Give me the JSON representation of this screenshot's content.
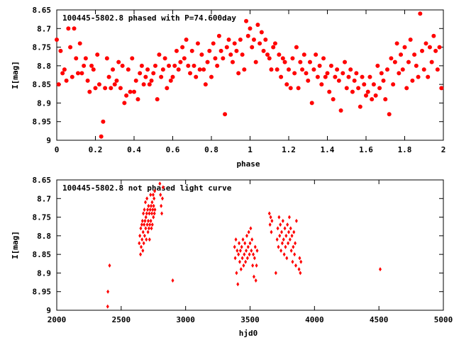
{
  "chart_data": [
    {
      "type": "scatter",
      "title": "100445-5802.8 phased with P=74.600day",
      "xlabel": "phase",
      "ylabel": "I[mag]",
      "xlim": [
        0,
        2
      ],
      "ylim": [
        8.65,
        9
      ],
      "y_inverted": true,
      "x_ticks": [
        "0",
        "0.2",
        "0.4",
        "0.6",
        "0.8",
        "1",
        "1.2",
        "1.4",
        "1.6",
        "1.8",
        "2"
      ],
      "y_ticks": [
        "8.65",
        "8.7",
        "8.75",
        "8.8",
        "8.85",
        "8.9",
        "8.95",
        "9"
      ],
      "marker_color": "#ff0000",
      "marker": "filled-circle",
      "points": [
        [
          0.0,
          8.73
        ],
        [
          0.01,
          8.85
        ],
        [
          0.02,
          8.76
        ],
        [
          0.03,
          8.82
        ],
        [
          0.04,
          8.81
        ],
        [
          0.05,
          8.84
        ],
        [
          0.06,
          8.7
        ],
        [
          0.07,
          8.75
        ],
        [
          0.08,
          8.83
        ],
        [
          0.09,
          8.7
        ],
        [
          0.1,
          8.78
        ],
        [
          0.11,
          8.82
        ],
        [
          0.12,
          8.74
        ],
        [
          0.13,
          8.82
        ],
        [
          0.14,
          8.8
        ],
        [
          0.15,
          8.78
        ],
        [
          0.16,
          8.84
        ],
        [
          0.17,
          8.87
        ],
        [
          0.18,
          8.8
        ],
        [
          0.19,
          8.81
        ],
        [
          0.2,
          8.86
        ],
        [
          0.21,
          8.77
        ],
        [
          0.22,
          8.85
        ],
        [
          0.23,
          8.99
        ],
        [
          0.24,
          8.95
        ],
        [
          0.25,
          8.86
        ],
        [
          0.26,
          8.78
        ],
        [
          0.27,
          8.83
        ],
        [
          0.28,
          8.86
        ],
        [
          0.29,
          8.81
        ],
        [
          0.3,
          8.85
        ],
        [
          0.31,
          8.84
        ],
        [
          0.32,
          8.79
        ],
        [
          0.33,
          8.86
        ],
        [
          0.34,
          8.8
        ],
        [
          0.35,
          8.9
        ],
        [
          0.36,
          8.88
        ],
        [
          0.37,
          8.81
        ],
        [
          0.38,
          8.87
        ],
        [
          0.39,
          8.78
        ],
        [
          0.4,
          8.87
        ],
        [
          0.41,
          8.84
        ],
        [
          0.42,
          8.89
        ],
        [
          0.43,
          8.82
        ],
        [
          0.44,
          8.8
        ],
        [
          0.45,
          8.85
        ],
        [
          0.46,
          8.83
        ],
        [
          0.47,
          8.81
        ],
        [
          0.48,
          8.85
        ],
        [
          0.49,
          8.84
        ],
        [
          0.5,
          8.82
        ],
        [
          0.51,
          8.8
        ],
        [
          0.52,
          8.89
        ],
        [
          0.53,
          8.77
        ],
        [
          0.54,
          8.83
        ],
        [
          0.55,
          8.81
        ],
        [
          0.56,
          8.78
        ],
        [
          0.57,
          8.86
        ],
        [
          0.58,
          8.8
        ],
        [
          0.59,
          8.84
        ],
        [
          0.6,
          8.83
        ],
        [
          0.61,
          8.8
        ],
        [
          0.62,
          8.76
        ],
        [
          0.63,
          8.81
        ],
        [
          0.64,
          8.79
        ],
        [
          0.65,
          8.75
        ],
        [
          0.66,
          8.78
        ],
        [
          0.67,
          8.73
        ],
        [
          0.68,
          8.8
        ],
        [
          0.69,
          8.82
        ],
        [
          0.7,
          8.76
        ],
        [
          0.71,
          8.8
        ],
        [
          0.72,
          8.83
        ],
        [
          0.73,
          8.74
        ],
        [
          0.74,
          8.81
        ],
        [
          0.75,
          8.77
        ],
        [
          0.76,
          8.81
        ],
        [
          0.77,
          8.85
        ],
        [
          0.78,
          8.79
        ],
        [
          0.79,
          8.76
        ],
        [
          0.8,
          8.83
        ],
        [
          0.81,
          8.74
        ],
        [
          0.82,
          8.78
        ],
        [
          0.83,
          8.8
        ],
        [
          0.84,
          8.72
        ],
        [
          0.85,
          8.76
        ],
        [
          0.86,
          8.78
        ],
        [
          0.87,
          8.93
        ],
        [
          0.88,
          8.75
        ],
        [
          0.89,
          8.73
        ],
        [
          0.9,
          8.77
        ],
        [
          0.91,
          8.79
        ],
        [
          0.92,
          8.74
        ],
        [
          0.93,
          8.76
        ],
        [
          0.94,
          8.82
        ],
        [
          0.95,
          8.73
        ],
        [
          0.96,
          8.77
        ],
        [
          0.97,
          8.81
        ],
        [
          0.98,
          8.68
        ],
        [
          0.99,
          8.72
        ],
        [
          1.0,
          8.7
        ],
        [
          1.01,
          8.75
        ],
        [
          1.02,
          8.73
        ],
        [
          1.03,
          8.79
        ],
        [
          1.04,
          8.69
        ],
        [
          1.05,
          8.74
        ],
        [
          1.06,
          8.71
        ],
        [
          1.07,
          8.76
        ],
        [
          1.08,
          8.73
        ],
        [
          1.09,
          8.77
        ],
        [
          1.1,
          8.78
        ],
        [
          1.11,
          8.81
        ],
        [
          1.12,
          8.75
        ],
        [
          1.13,
          8.74
        ],
        [
          1.14,
          8.81
        ],
        [
          1.15,
          8.77
        ],
        [
          1.16,
          8.83
        ],
        [
          1.17,
          8.78
        ],
        [
          1.18,
          8.79
        ],
        [
          1.19,
          8.85
        ],
        [
          1.2,
          8.81
        ],
        [
          1.21,
          8.86
        ],
        [
          1.22,
          8.78
        ],
        [
          1.23,
          8.82
        ],
        [
          1.24,
          8.75
        ],
        [
          1.25,
          8.86
        ],
        [
          1.26,
          8.79
        ],
        [
          1.27,
          8.81
        ],
        [
          1.28,
          8.77
        ],
        [
          1.29,
          8.82
        ],
        [
          1.3,
          8.84
        ],
        [
          1.31,
          8.79
        ],
        [
          1.32,
          8.9
        ],
        [
          1.33,
          8.81
        ],
        [
          1.34,
          8.77
        ],
        [
          1.35,
          8.83
        ],
        [
          1.36,
          8.8
        ],
        [
          1.37,
          8.85
        ],
        [
          1.38,
          8.78
        ],
        [
          1.39,
          8.83
        ],
        [
          1.4,
          8.82
        ],
        [
          1.41,
          8.87
        ],
        [
          1.42,
          8.8
        ],
        [
          1.43,
          8.89
        ],
        [
          1.44,
          8.83
        ],
        [
          1.45,
          8.81
        ],
        [
          1.46,
          8.84
        ],
        [
          1.47,
          8.92
        ],
        [
          1.48,
          8.82
        ],
        [
          1.49,
          8.79
        ],
        [
          1.5,
          8.86
        ],
        [
          1.51,
          8.83
        ],
        [
          1.52,
          8.81
        ],
        [
          1.53,
          8.87
        ],
        [
          1.54,
          8.84
        ],
        [
          1.55,
          8.82
        ],
        [
          1.56,
          8.86
        ],
        [
          1.57,
          8.91
        ],
        [
          1.58,
          8.83
        ],
        [
          1.59,
          8.85
        ],
        [
          1.6,
          8.88
        ],
        [
          1.61,
          8.87
        ],
        [
          1.62,
          8.83
        ],
        [
          1.63,
          8.89
        ],
        [
          1.64,
          8.85
        ],
        [
          1.65,
          8.88
        ],
        [
          1.66,
          8.8
        ],
        [
          1.67,
          8.86
        ],
        [
          1.68,
          8.82
        ],
        [
          1.69,
          8.84
        ],
        [
          1.7,
          8.89
        ],
        [
          1.71,
          8.81
        ],
        [
          1.72,
          8.93
        ],
        [
          1.73,
          8.78
        ],
        [
          1.74,
          8.85
        ],
        [
          1.75,
          8.79
        ],
        [
          1.76,
          8.74
        ],
        [
          1.77,
          8.82
        ],
        [
          1.78,
          8.77
        ],
        [
          1.79,
          8.81
        ],
        [
          1.8,
          8.75
        ],
        [
          1.81,
          8.86
        ],
        [
          1.82,
          8.79
        ],
        [
          1.83,
          8.73
        ],
        [
          1.84,
          8.84
        ],
        [
          1.85,
          8.77
        ],
        [
          1.86,
          8.8
        ],
        [
          1.87,
          8.83
        ],
        [
          1.88,
          8.66
        ],
        [
          1.89,
          8.76
        ],
        [
          1.9,
          8.81
        ],
        [
          1.91,
          8.74
        ],
        [
          1.92,
          8.83
        ],
        [
          1.93,
          8.75
        ],
        [
          1.94,
          8.79
        ],
        [
          1.95,
          8.72
        ],
        [
          1.96,
          8.76
        ],
        [
          1.97,
          8.81
        ],
        [
          1.98,
          8.75
        ],
        [
          1.99,
          8.86
        ]
      ]
    },
    {
      "type": "scatter",
      "title": "100445-5802.8 not phased light curve",
      "xlabel": "hjd0",
      "ylabel": "I[mag]",
      "xlim": [
        2000,
        5000
      ],
      "ylim": [
        8.65,
        9
      ],
      "y_inverted": true,
      "x_ticks": [
        "2000",
        "2500",
        "3000",
        "3500",
        "4000",
        "4500",
        "5000"
      ],
      "y_ticks": [
        "8.65",
        "8.7",
        "8.75",
        "8.8",
        "8.85",
        "8.9",
        "8.95",
        "9"
      ],
      "marker_color": "#ff0000",
      "marker": "diamond",
      "points": [
        [
          2395,
          8.99
        ],
        [
          2397,
          8.95
        ],
        [
          2410,
          8.88
        ],
        [
          2640,
          8.82
        ],
        [
          2645,
          8.8
        ],
        [
          2650,
          8.85
        ],
        [
          2652,
          8.78
        ],
        [
          2655,
          8.83
        ],
        [
          2660,
          8.77
        ],
        [
          2662,
          8.81
        ],
        [
          2665,
          8.76
        ],
        [
          2668,
          8.84
        ],
        [
          2670,
          8.79
        ],
        [
          2672,
          8.74
        ],
        [
          2675,
          8.82
        ],
        [
          2678,
          8.77
        ],
        [
          2680,
          8.73
        ],
        [
          2682,
          8.8
        ],
        [
          2685,
          8.76
        ],
        [
          2688,
          8.71
        ],
        [
          2690,
          8.78
        ],
        [
          2692,
          8.75
        ],
        [
          2695,
          8.81
        ],
        [
          2698,
          8.74
        ],
        [
          2700,
          8.7
        ],
        [
          2702,
          8.77
        ],
        [
          2705,
          8.73
        ],
        [
          2708,
          8.79
        ],
        [
          2710,
          8.76
        ],
        [
          2712,
          8.72
        ],
        [
          2715,
          8.78
        ],
        [
          2718,
          8.74
        ],
        [
          2720,
          8.81
        ],
        [
          2722,
          8.77
        ],
        [
          2725,
          8.73
        ],
        [
          2728,
          8.69
        ],
        [
          2730,
          8.76
        ],
        [
          2732,
          8.72
        ],
        [
          2735,
          8.78
        ],
        [
          2738,
          8.74
        ],
        [
          2740,
          8.71
        ],
        [
          2742,
          8.77
        ],
        [
          2745,
          8.73
        ],
        [
          2748,
          8.69
        ],
        [
          2750,
          8.75
        ],
        [
          2752,
          8.72
        ],
        [
          2755,
          8.7
        ],
        [
          2758,
          8.74
        ],
        [
          2760,
          8.68
        ],
        [
          2762,
          8.73
        ],
        [
          2800,
          8.66
        ],
        [
          2805,
          8.69
        ],
        [
          2810,
          8.72
        ],
        [
          2815,
          8.74
        ],
        [
          2820,
          8.7
        ],
        [
          2825,
          8.67
        ],
        [
          2900,
          8.92
        ],
        [
          3380,
          8.83
        ],
        [
          3385,
          8.86
        ],
        [
          3390,
          8.81
        ],
        [
          3395,
          8.9
        ],
        [
          3400,
          8.84
        ],
        [
          3405,
          8.93
        ],
        [
          3410,
          8.85
        ],
        [
          3415,
          8.82
        ],
        [
          3420,
          8.87
        ],
        [
          3425,
          8.84
        ],
        [
          3430,
          8.89
        ],
        [
          3435,
          8.83
        ],
        [
          3440,
          8.86
        ],
        [
          3445,
          8.81
        ],
        [
          3450,
          8.88
        ],
        [
          3455,
          8.85
        ],
        [
          3460,
          8.82
        ],
        [
          3465,
          8.87
        ],
        [
          3470,
          8.84
        ],
        [
          3475,
          8.8
        ],
        [
          3480,
          8.86
        ],
        [
          3485,
          8.83
        ],
        [
          3490,
          8.79
        ],
        [
          3495,
          8.85
        ],
        [
          3500,
          8.82
        ],
        [
          3505,
          8.78
        ],
        [
          3510,
          8.84
        ],
        [
          3515,
          8.81
        ],
        [
          3520,
          8.88
        ],
        [
          3525,
          8.85
        ],
        [
          3530,
          8.91
        ],
        [
          3535,
          8.86
        ],
        [
          3540,
          8.83
        ],
        [
          3545,
          8.92
        ],
        [
          3550,
          8.88
        ],
        [
          3555,
          8.84
        ],
        [
          3650,
          8.74
        ],
        [
          3655,
          8.77
        ],
        [
          3660,
          8.75
        ],
        [
          3665,
          8.79
        ],
        [
          3670,
          8.76
        ],
        [
          3700,
          8.9
        ],
        [
          3710,
          8.81
        ],
        [
          3715,
          8.78
        ],
        [
          3720,
          8.83
        ],
        [
          3725,
          8.75
        ],
        [
          3730,
          8.8
        ],
        [
          3735,
          8.77
        ],
        [
          3740,
          8.84
        ],
        [
          3745,
          8.79
        ],
        [
          3750,
          8.82
        ],
        [
          3755,
          8.76
        ],
        [
          3760,
          8.81
        ],
        [
          3765,
          8.85
        ],
        [
          3770,
          8.78
        ],
        [
          3775,
          8.83
        ],
        [
          3780,
          8.8
        ],
        [
          3785,
          8.86
        ],
        [
          3790,
          8.77
        ],
        [
          3795,
          8.82
        ],
        [
          3800,
          8.79
        ],
        [
          3805,
          8.75
        ],
        [
          3810,
          8.81
        ],
        [
          3815,
          8.78
        ],
        [
          3820,
          8.84
        ],
        [
          3825,
          8.8
        ],
        [
          3830,
          8.87
        ],
        [
          3835,
          8.83
        ],
        [
          3840,
          8.79
        ],
        [
          3845,
          8.85
        ],
        [
          3850,
          8.82
        ],
        [
          3855,
          8.88
        ],
        [
          3860,
          8.76
        ],
        [
          3880,
          8.89
        ],
        [
          3885,
          8.86
        ],
        [
          3890,
          8.9
        ],
        [
          3895,
          8.87
        ],
        [
          4510,
          8.89
        ]
      ]
    }
  ]
}
